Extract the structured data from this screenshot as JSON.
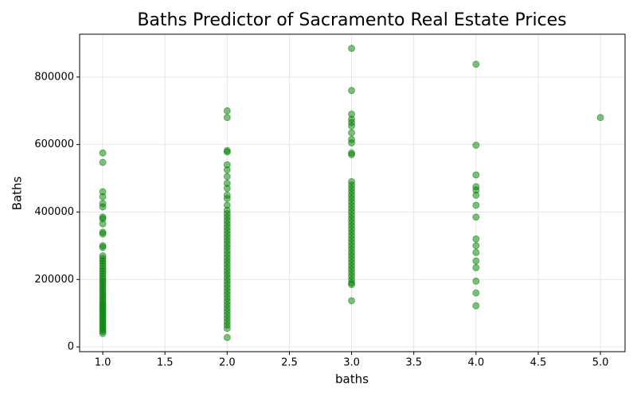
{
  "chart_data": {
    "type": "scatter",
    "title": "Baths Predictor of Sacramento Real Estate Prices",
    "x_label": "baths",
    "y_label": "Baths",
    "color": "green",
    "grid": true,
    "xlim": [
      0.814,
      5.198
    ],
    "ylim": [
      -14000,
      927000
    ],
    "xticks": [
      {
        "value": 1,
        "label": "1.0"
      },
      {
        "value": 1.5,
        "label": "1.5"
      },
      {
        "value": 2,
        "label": "2.0"
      },
      {
        "value": 2.5,
        "label": "2.5"
      },
      {
        "value": 3,
        "label": "3.0"
      },
      {
        "value": 3.5,
        "label": "3.5"
      },
      {
        "value": 4,
        "label": "4.0"
      },
      {
        "value": 4.5,
        "label": "4.5"
      },
      {
        "value": 5,
        "label": "5.0"
      }
    ],
    "yticks": [
      0,
      200000,
      400000,
      600000,
      800000
    ],
    "x": [
      1,
      1,
      1,
      1,
      1,
      1,
      1,
      1,
      1,
      1,
      1,
      1,
      1,
      1,
      1,
      1,
      1,
      1,
      1,
      1,
      1,
      1,
      1,
      1,
      1,
      1,
      1,
      1,
      1,
      1,
      1,
      1,
      1,
      1,
      1,
      1,
      1,
      1,
      1,
      1,
      1,
      1,
      1,
      1,
      1,
      1,
      1,
      1,
      1,
      2,
      2,
      2,
      2,
      2,
      2,
      2,
      2,
      2,
      2,
      2,
      2,
      2,
      2,
      2,
      2,
      2,
      2,
      2,
      2,
      2,
      2,
      2,
      2,
      2,
      2,
      2,
      2,
      2,
      2,
      2,
      2,
      2,
      2,
      2,
      2,
      2,
      2,
      2,
      2,
      2,
      2,
      2,
      2,
      2,
      2,
      2,
      2,
      2,
      3,
      3,
      3,
      3,
      3,
      3,
      3,
      3,
      3,
      3,
      3,
      3,
      3,
      3,
      3,
      3,
      3,
      3,
      3,
      3,
      3,
      3,
      3,
      3,
      3,
      3,
      3,
      3,
      3,
      3,
      3,
      3,
      3,
      3,
      3,
      3,
      3,
      3,
      3,
      3,
      3,
      3,
      3,
      3,
      4,
      4,
      4,
      4,
      4,
      4,
      4,
      4,
      4,
      4,
      4,
      4,
      4,
      4,
      4,
      4,
      5
    ],
    "values": [
      575000,
      547000,
      460000,
      445000,
      425000,
      415000,
      385000,
      380000,
      365000,
      340000,
      335000,
      300000,
      295000,
      270000,
      262000,
      255000,
      248000,
      240000,
      232000,
      225000,
      218000,
      210000,
      203000,
      196000,
      190000,
      183000,
      176000,
      170000,
      163000,
      156000,
      150000,
      143000,
      137000,
      130000,
      124000,
      118000,
      112000,
      106000,
      100000,
      94000,
      88000,
      82000,
      76000,
      70000,
      64000,
      58000,
      52000,
      46000,
      40000,
      700000,
      680000,
      582000,
      578000,
      540000,
      525000,
      505000,
      485000,
      470000,
      450000,
      440000,
      420000,
      405000,
      395000,
      385000,
      375000,
      365000,
      355000,
      345000,
      335000,
      325000,
      315000,
      305000,
      295000,
      285000,
      275000,
      265000,
      255000,
      245000,
      235000,
      225000,
      215000,
      205000,
      195000,
      185000,
      175000,
      165000,
      155000,
      145000,
      135000,
      125000,
      115000,
      105000,
      95000,
      85000,
      75000,
      65000,
      55000,
      28000,
      885000,
      760000,
      690000,
      675000,
      665000,
      655000,
      635000,
      615000,
      605000,
      575000,
      570000,
      490000,
      480000,
      470000,
      460000,
      450000,
      440000,
      430000,
      420000,
      410000,
      400000,
      390000,
      380000,
      370000,
      360000,
      350000,
      340000,
      330000,
      320000,
      310000,
      300000,
      290000,
      280000,
      270000,
      260000,
      250000,
      240000,
      230000,
      220000,
      210000,
      200000,
      190000,
      185000,
      137000,
      838000,
      598000,
      510000,
      475000,
      465000,
      450000,
      420000,
      385000,
      320000,
      300000,
      280000,
      255000,
      235000,
      195000,
      160000,
      122000,
      680000
    ]
  }
}
